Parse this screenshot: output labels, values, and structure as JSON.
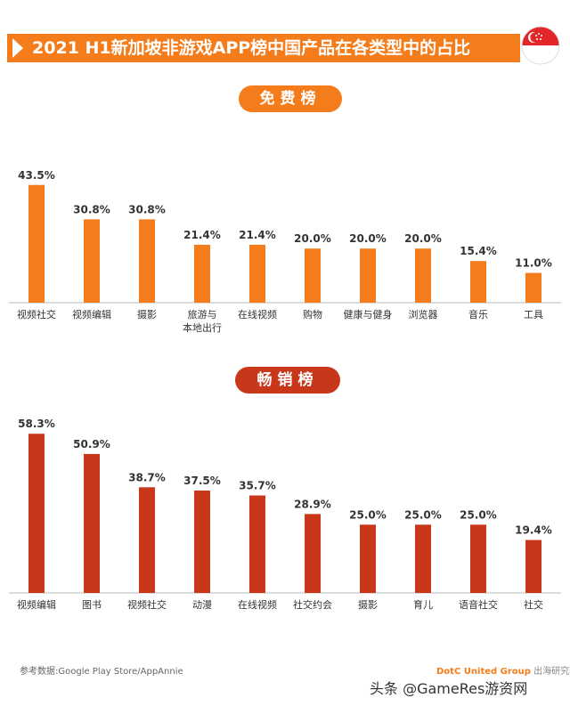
{
  "title": "2021 H1新加坡非游戏APP榜中国产品在各类型中的占比",
  "colors": {
    "free": "#f47c1a",
    "paid": "#c9371a",
    "axis": "#bbbbbb"
  },
  "free_label": "免费榜",
  "paid_label": "畅销榜",
  "source": "参考数据:Google Play Store/AppAnnie",
  "brand_main": "DotC United Group",
  "brand_sub": "出海研究院",
  "credit": "头条 @GameRes游资网",
  "chart_data": [
    {
      "type": "bar",
      "title": "免费榜",
      "categories": [
        "视频社交",
        "视频编辑",
        "摄影",
        "旅游与\n本地出行",
        "在线视频",
        "购物",
        "健康与健身",
        "浏览器",
        "音乐",
        "工具"
      ],
      "values": [
        43.5,
        30.8,
        30.8,
        21.4,
        21.4,
        20.0,
        20.0,
        20.0,
        15.4,
        11.0
      ],
      "data_labels": [
        "43.5%",
        "30.8%",
        "30.8%",
        "21.4%",
        "21.4%",
        "20.0%",
        "20.0%",
        "20.0%",
        "15.4%",
        "11.0%"
      ],
      "ylim": [
        0,
        50
      ],
      "grid": false,
      "legend": false
    },
    {
      "type": "bar",
      "title": "畅销榜",
      "categories": [
        "视频编辑",
        "图书",
        "视频社交",
        "动漫",
        "在线视频",
        "社交约会",
        "摄影",
        "育儿",
        "语音社交",
        "社交"
      ],
      "values": [
        58.3,
        50.9,
        38.7,
        37.5,
        35.7,
        28.9,
        25.0,
        25.0,
        25.0,
        19.4
      ],
      "data_labels": [
        "58.3%",
        "50.9%",
        "38.7%",
        "37.5%",
        "35.7%",
        "28.9%",
        "25.0%",
        "25.0%",
        "25.0%",
        "19.4%"
      ],
      "ylim": [
        0,
        60
      ],
      "grid": false,
      "legend": false
    }
  ]
}
